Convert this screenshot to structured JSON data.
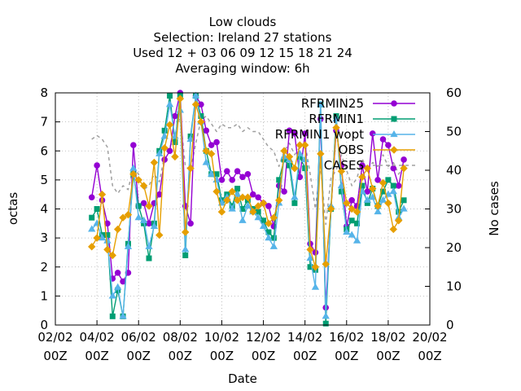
{
  "chart_data": {
    "type": "line",
    "title_lines": [
      "Low clouds",
      "Selection: Ireland      27 stations",
      "Used  12 + 03 06 09 12 15 18 21 24",
      "Averaging window:  6h"
    ],
    "xlabel": "Date",
    "ylabel": "octas",
    "y2label": "No cases",
    "ylim": [
      0,
      8
    ],
    "y2lim": [
      0,
      60
    ],
    "xlim": [
      0,
      18
    ],
    "x_ticks": [
      {
        "x": 0,
        "l1": "02/02",
        "l2": "00Z"
      },
      {
        "x": 2,
        "l1": "04/02",
        "l2": "00Z"
      },
      {
        "x": 4,
        "l1": "06/02",
        "l2": "00Z"
      },
      {
        "x": 6,
        "l1": "08/02",
        "l2": "00Z"
      },
      {
        "x": 8,
        "l1": "10/02",
        "l2": "00Z"
      },
      {
        "x": 10,
        "l1": "12/02",
        "l2": "00Z"
      },
      {
        "x": 12,
        "l1": "14/02",
        "l2": "00Z"
      },
      {
        "x": 14,
        "l1": "16/02",
        "l2": "00Z"
      },
      {
        "x": 16,
        "l1": "18/02",
        "l2": "00Z"
      },
      {
        "x": 18,
        "l1": "20/02",
        "l2": "00Z"
      }
    ],
    "y_ticks": [
      "0",
      "1",
      "2",
      "3",
      "4",
      "5",
      "6",
      "7",
      "8"
    ],
    "y2_ticks": [
      "0",
      "10",
      "20",
      "30",
      "40",
      "50",
      "60"
    ],
    "grid": true,
    "legend_position": "top-right",
    "x_values": [
      1.75,
      2.0,
      2.25,
      2.5,
      2.75,
      3.0,
      3.25,
      3.5,
      3.75,
      4.0,
      4.25,
      4.5,
      4.75,
      5.0,
      5.25,
      5.5,
      5.75,
      6.0,
      6.25,
      6.5,
      6.75,
      7.0,
      7.25,
      7.5,
      7.75,
      8.0,
      8.25,
      8.5,
      8.75,
      9.0,
      9.25,
      9.5,
      9.75,
      10.0,
      10.25,
      10.5,
      10.75,
      11.0,
      11.25,
      11.5,
      11.75,
      12.0,
      12.25,
      12.5,
      12.75,
      13.0,
      13.25,
      13.5,
      13.75,
      14.0,
      14.25,
      14.5,
      14.75,
      15.0,
      15.25,
      15.5,
      15.75,
      16.0,
      16.25,
      16.5,
      16.75
    ],
    "series": [
      {
        "name": "RFRMIN25",
        "color": "#9400d3",
        "marker": "circle",
        "values": [
          4.4,
          5.5,
          4.3,
          3.5,
          1.6,
          1.8,
          1.5,
          1.8,
          6.2,
          4.1,
          4.2,
          3.5,
          4.2,
          4.5,
          5.7,
          6.0,
          7.2,
          8.0,
          4.1,
          3.5,
          7.9,
          7.6,
          6.7,
          6.2,
          6.3,
          5.0,
          5.3,
          5.0,
          5.3,
          5.1,
          5.2,
          4.5,
          4.4,
          4.2,
          4.1,
          3.4,
          4.8,
          4.6,
          6.7,
          6.6,
          5.1,
          6.6,
          2.8,
          2.5,
          7.1,
          0.6,
          4.0,
          6.7,
          5.5,
          3.4,
          4.3,
          4.1,
          5.5,
          4.6,
          6.6,
          5.0,
          6.4,
          6.2,
          5.4,
          4.8,
          5.7
        ]
      },
      {
        "name": "RFRMIN1",
        "color": "#009e73",
        "marker": "square",
        "values": [
          3.7,
          4.0,
          3.1,
          3.1,
          0.3,
          1.2,
          0.3,
          2.8,
          5.2,
          4.1,
          3.5,
          2.3,
          3.5,
          6.0,
          6.7,
          7.9,
          6.3,
          7.9,
          2.4,
          6.5,
          7.9,
          7.2,
          6.0,
          5.2,
          5.2,
          4.3,
          4.5,
          4.1,
          4.7,
          4.0,
          4.3,
          4.0,
          3.9,
          3.6,
          3.2,
          3.0,
          5.0,
          5.7,
          5.5,
          4.2,
          5.8,
          5.4,
          2.0,
          1.9,
          7.6,
          0.05,
          4.0,
          7.2,
          4.6,
          3.3,
          3.6,
          3.5,
          4.8,
          4.2,
          4.7,
          4.1,
          4.6,
          5.0,
          4.8,
          3.9,
          4.3
        ]
      },
      {
        "name": "RFRMIN1 wopt",
        "color": "#56b4e9",
        "marker": "triangle",
        "values": [
          3.3,
          3.5,
          3.0,
          2.9,
          1.0,
          1.3,
          0.3,
          2.7,
          5.4,
          3.7,
          3.6,
          2.7,
          3.4,
          5.9,
          6.5,
          7.6,
          6.5,
          7.4,
          2.6,
          6.4,
          7.9,
          7.0,
          5.6,
          5.2,
          5.0,
          4.2,
          4.4,
          4.0,
          4.5,
          3.6,
          4.1,
          3.9,
          3.7,
          3.4,
          3.0,
          2.7,
          4.2,
          5.8,
          5.7,
          4.4,
          5.9,
          5.7,
          2.3,
          1.3,
          7.6,
          0.3,
          4.1,
          7.1,
          4.8,
          3.2,
          3.1,
          2.9,
          4.6,
          4.3,
          4.4,
          3.9,
          4.3,
          4.5,
          4.6,
          3.7,
          4.0
        ]
      },
      {
        "name": "OBS",
        "color": "#e69f00",
        "marker": "diamond",
        "values": [
          2.7,
          3.0,
          4.5,
          2.6,
          2.4,
          3.3,
          3.7,
          3.8,
          5.2,
          5.0,
          4.8,
          4.1,
          5.6,
          3.1,
          6.1,
          6.9,
          5.8,
          7.8,
          3.2,
          5.4,
          7.6,
          7.0,
          6.0,
          5.9,
          4.6,
          3.9,
          4.3,
          4.6,
          4.3,
          4.4,
          4.4,
          3.9,
          4.1,
          4.2,
          3.5,
          3.7,
          4.3,
          6.0,
          5.8,
          5.4,
          6.2,
          6.2,
          2.6,
          2.0,
          5.9,
          2.1,
          4.0,
          6.8,
          5.3,
          4.2,
          4.0,
          3.9,
          5.1,
          5.4,
          4.7,
          4.1,
          4.9,
          4.2,
          3.3,
          3.6,
          5.4
        ]
      },
      {
        "name": "CASES",
        "color": "#a0a0a0",
        "dash": true,
        "axis": "y2",
        "values": [
          48,
          49,
          48,
          46,
          36,
          34,
          36,
          35,
          41,
          39,
          35,
          36,
          39,
          37,
          44,
          46,
          49,
          54,
          41,
          40,
          47,
          53,
          54,
          52,
          50,
          52,
          51,
          51,
          52,
          50,
          51,
          50,
          50,
          48,
          46,
          45,
          41,
          45,
          47,
          44,
          46,
          47,
          39,
          30,
          41,
          26,
          38,
          40,
          44,
          40,
          36,
          38,
          43,
          40,
          42,
          41,
          44,
          41,
          42,
          39,
          41
        ]
      }
    ]
  }
}
